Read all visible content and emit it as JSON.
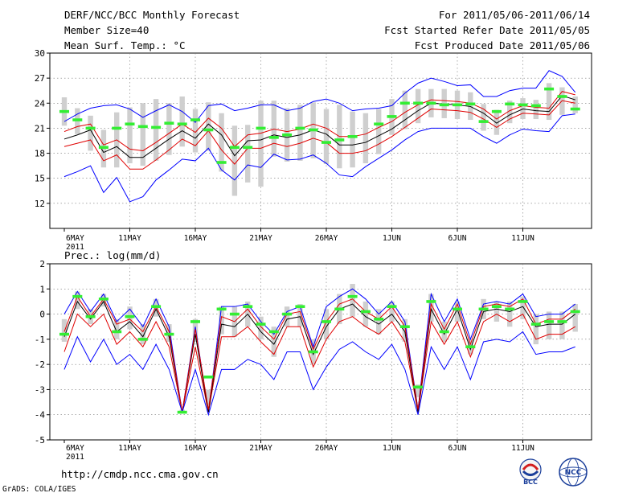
{
  "header": {
    "title": "DERF/NCC/BCC Monthly Forecast",
    "member_size": "Member Size=40",
    "variable": "Mean Surf. Temp.: °C",
    "period": "For 2011/05/06-2011/06/14",
    "started": "Fcst Started Refer Date 2011/05/05",
    "produced": "Fcst Produced Date 2011/05/06"
  },
  "footer": {
    "url": "http://cmdp.ncc.cma.gov.cn",
    "grads": "GrADS: COLA/IGES"
  },
  "logos": {
    "bcc": "BCC",
    "ncc": "NCC"
  },
  "colors": {
    "spread": "#0000ff",
    "ens_band": "#e00000",
    "mean": "#000000",
    "obs": "#33ee33",
    "box": "#cfcfcf"
  },
  "chart_data": [
    {
      "type": "line",
      "title": "Mean Surf. Temp.: °C",
      "x_tick_labels": [
        "6MAY",
        "11MAY",
        "16MAY",
        "21MAY",
        "26MAY",
        "1JUN",
        "6JUN",
        "11JUN"
      ],
      "x_year_label": "2011",
      "x_count": 40,
      "ylim": [
        9,
        30
      ],
      "y_ticks": [
        12,
        15,
        18,
        21,
        24,
        27,
        30
      ],
      "series": [
        {
          "name": "max",
          "values": [
            15.2,
            15.8,
            16.5,
            13.3,
            15.1,
            12.2,
            12.8,
            14.8,
            16.0,
            17.3,
            17.1,
            18.6,
            16.0,
            14.8,
            16.6,
            16.3,
            17.9,
            17.2,
            17.3,
            17.8,
            16.8,
            15.4,
            15.2,
            16.4,
            17.4,
            18.4,
            19.6,
            20.6,
            21.0,
            21.0,
            21.0,
            21.0,
            20.0,
            19.2,
            20.2,
            20.9,
            20.7,
            20.6,
            22.5,
            22.7
          ]
        },
        {
          "name": "p25",
          "values": [
            18.8,
            19.2,
            19.6,
            17.1,
            17.8,
            16.1,
            16.1,
            17.2,
            18.4,
            19.7,
            18.9,
            20.7,
            18.4,
            16.7,
            18.6,
            18.6,
            19.2,
            18.8,
            19.2,
            19.8,
            19.3,
            18.0,
            18.0,
            18.3,
            19.1,
            20.0,
            21.1,
            22.2,
            23.3,
            23.2,
            23.1,
            22.9,
            22.1,
            21.1,
            22.1,
            22.8,
            22.7,
            22.6,
            24.3,
            24.0
          ]
        },
        {
          "name": "mean",
          "values": [
            19.7,
            20.2,
            20.8,
            18.1,
            18.8,
            17.5,
            17.5,
            18.6,
            19.7,
            20.7,
            19.8,
            21.5,
            20.2,
            17.7,
            19.5,
            19.6,
            20.2,
            19.9,
            20.2,
            20.8,
            20.3,
            19.0,
            19.0,
            19.3,
            20.1,
            20.9,
            22.0,
            23.1,
            24.0,
            23.9,
            23.8,
            23.6,
            22.8,
            21.6,
            22.6,
            23.3,
            23.1,
            23.0,
            24.9,
            24.4
          ]
        },
        {
          "name": "p75",
          "values": [
            20.6,
            21.2,
            21.5,
            19.0,
            19.6,
            18.5,
            18.3,
            19.3,
            20.4,
            21.5,
            20.5,
            22.2,
            21.0,
            18.8,
            20.2,
            20.4,
            20.9,
            20.6,
            20.9,
            21.5,
            21.0,
            20.0,
            20.0,
            20.3,
            21.1,
            21.8,
            22.9,
            23.8,
            24.4,
            24.3,
            24.2,
            24.0,
            23.3,
            22.1,
            23.1,
            23.7,
            23.5,
            23.4,
            25.4,
            25.0
          ]
        },
        {
          "name": "min",
          "values": [
            21.8,
            22.7,
            23.4,
            23.7,
            23.8,
            23.3,
            22.3,
            23.1,
            23.8,
            23.0,
            21.7,
            23.7,
            23.9,
            23.1,
            23.4,
            23.8,
            23.8,
            23.1,
            23.4,
            24.2,
            24.5,
            24.0,
            23.1,
            23.3,
            23.4,
            23.7,
            25.2,
            26.4,
            27.0,
            26.6,
            26.1,
            26.2,
            24.8,
            24.8,
            25.5,
            25.8,
            25.8,
            27.9,
            27.2,
            25.3
          ]
        },
        {
          "name": "obs",
          "values": [
            23.0,
            22.0,
            21.0,
            18.7,
            21.0,
            21.5,
            21.2,
            21.1,
            21.6,
            21.5,
            22.0,
            20.8,
            16.9,
            18.7,
            18.7,
            21.0,
            19.9,
            20.2,
            21.0,
            20.8,
            19.3,
            19.6,
            20.0,
            null,
            21.5,
            22.4,
            24.0,
            24.0,
            24.0,
            23.8,
            23.8,
            23.9,
            21.8,
            23.0,
            23.9,
            23.8,
            23.7,
            25.7,
            24.8,
            23.3
          ]
        }
      ],
      "box_low": [
        21.3,
        20.3,
        18.3,
        16.3,
        16.3,
        16.8,
        16.5,
        17.1,
        17.8,
        18.8,
        18.1,
        18.3,
        15.8,
        12.9,
        14.5,
        14.0,
        17.6,
        17.0,
        17.1,
        17.4,
        16.7,
        16.2,
        16.3,
        16.8,
        17.9,
        20.2,
        20.9,
        21.6,
        22.3,
        22.2,
        22.1,
        22.0,
        20.7,
        20.2,
        21.6,
        22.1,
        22.1,
        22.0,
        22.6,
        22.8
      ],
      "box_high": [
        24.7,
        23.4,
        22.5,
        20.8,
        22.9,
        23.5,
        24.0,
        24.5,
        24.0,
        24.8,
        23.3,
        24.1,
        22.8,
        21.3,
        21.4,
        24.3,
        24.3,
        23.4,
        23.8,
        24.1,
        23.3,
        23.8,
        23.0,
        22.8,
        23.3,
        24.5,
        25.5,
        25.7,
        25.7,
        25.7,
        25.5,
        25.3,
        23.9,
        23.2,
        24.3,
        24.6,
        24.4,
        26.4,
        25.9,
        24.8
      ]
    },
    {
      "type": "line",
      "title": "Prec.: log(mm/d)",
      "x_tick_labels": [
        "6MAY",
        "11MAY",
        "16MAY",
        "21MAY",
        "26MAY",
        "1JUN",
        "6JUN",
        "11JUN"
      ],
      "x_year_label": "2011",
      "x_count": 40,
      "ylim": [
        -5,
        2
      ],
      "y_ticks": [
        -5,
        -4,
        -3,
        -2,
        -1,
        0,
        1,
        2
      ],
      "series": [
        {
          "name": "max",
          "values": [
            0.0,
            0.9,
            0.1,
            0.8,
            -0.3,
            0.2,
            -0.5,
            0.6,
            -0.5,
            -3.9,
            -0.5,
            -3.9,
            0.3,
            0.3,
            0.4,
            -0.3,
            -0.8,
            0.1,
            0.3,
            -1.3,
            0.3,
            0.7,
            1.0,
            0.6,
            0.0,
            0.5,
            -0.3,
            -3.8,
            0.8,
            -0.3,
            0.6,
            -1.0,
            0.4,
            0.5,
            0.4,
            0.8,
            -0.1,
            0.0,
            0.0,
            0.4
          ]
        },
        {
          "name": "p25",
          "values": [
            -1.5,
            0.0,
            -0.5,
            0.0,
            -1.2,
            -0.7,
            -1.3,
            -0.3,
            -1.3,
            -3.9,
            -1.3,
            -3.9,
            -0.9,
            -0.9,
            -0.5,
            -1.1,
            -1.6,
            -0.5,
            -0.5,
            -2.1,
            -1.0,
            -0.3,
            -0.1,
            -0.5,
            -0.8,
            -0.3,
            -1.1,
            -3.9,
            -0.3,
            -1.2,
            -0.3,
            -1.7,
            -0.3,
            0.0,
            -0.3,
            0.0,
            -1.0,
            -0.8,
            -0.8,
            -0.5
          ]
        },
        {
          "name": "mean",
          "values": [
            -0.9,
            0.5,
            -0.2,
            0.5,
            -0.7,
            -0.3,
            -0.9,
            0.2,
            -0.9,
            -3.9,
            -0.8,
            -3.9,
            -0.4,
            -0.5,
            0.0,
            -0.7,
            -1.2,
            -0.2,
            -0.1,
            -1.6,
            -0.5,
            0.2,
            0.4,
            -0.1,
            -0.4,
            0.0,
            -0.7,
            -3.9,
            0.2,
            -0.8,
            0.2,
            -1.4,
            0.1,
            0.2,
            0.1,
            0.3,
            -0.5,
            -0.4,
            -0.4,
            0.0
          ]
        },
        {
          "name": "p75",
          "values": [
            -0.7,
            0.7,
            -0.1,
            0.6,
            -0.4,
            -0.2,
            -0.7,
            0.3,
            -0.7,
            -3.9,
            -0.6,
            -3.8,
            -0.1,
            -0.3,
            0.2,
            -0.5,
            -1.0,
            0.0,
            0.1,
            -1.4,
            -0.3,
            0.4,
            0.6,
            0.1,
            -0.2,
            0.3,
            -0.5,
            -3.8,
            0.4,
            -0.6,
            0.4,
            -1.2,
            0.3,
            0.4,
            0.3,
            0.6,
            -0.4,
            -0.2,
            -0.2,
            0.2
          ]
        },
        {
          "name": "min",
          "values": [
            -2.2,
            -0.9,
            -1.9,
            -1.0,
            -2.0,
            -1.6,
            -2.2,
            -1.2,
            -2.2,
            -3.9,
            -2.2,
            -4.0,
            -2.2,
            -2.2,
            -1.8,
            -2.0,
            -2.6,
            -1.5,
            -1.5,
            -3.0,
            -2.1,
            -1.4,
            -1.1,
            -1.5,
            -1.8,
            -1.2,
            -2.2,
            -4.0,
            -1.3,
            -2.2,
            -1.3,
            -2.6,
            -1.1,
            -1.0,
            -1.1,
            -0.7,
            -1.6,
            -1.5,
            -1.5,
            -1.3
          ]
        },
        {
          "name": "obs",
          "values": [
            -0.8,
            0.7,
            -0.1,
            0.6,
            -0.7,
            -0.1,
            -1.0,
            0.3,
            -0.8,
            -3.9,
            -0.3,
            -2.5,
            0.2,
            0.0,
            0.3,
            -0.4,
            -0.7,
            0.0,
            0.3,
            -1.5,
            -0.3,
            0.2,
            0.7,
            0.1,
            -0.2,
            0.3,
            -0.5,
            -2.9,
            0.5,
            -0.7,
            0.2,
            -1.3,
            0.2,
            0.3,
            0.2,
            0.5,
            -0.4,
            -0.3,
            -0.3,
            0.1
          ]
        }
      ],
      "box_low": [
        -1.1,
        0.2,
        -0.4,
        0.3,
        -1.0,
        -0.6,
        -1.2,
        -0.1,
        -1.1,
        -3.9,
        -1.1,
        -3.6,
        -0.8,
        -0.9,
        -0.5,
        -1.0,
        -1.7,
        -0.5,
        -0.5,
        -2.0,
        -1.0,
        -0.4,
        -0.1,
        -0.5,
        -0.8,
        -0.3,
        -1.1,
        -3.3,
        -0.3,
        -1.1,
        -0.3,
        -1.6,
        -0.2,
        -0.3,
        -0.5,
        -0.2,
        -1.2,
        -1.0,
        -1.0,
        -0.7
      ],
      "box_high": [
        -0.2,
        0.9,
        0.2,
        0.8,
        -0.2,
        0.3,
        -0.4,
        0.6,
        -0.4,
        -3.8,
        -0.2,
        -3.0,
        0.3,
        0.3,
        0.5,
        -0.1,
        -0.5,
        0.3,
        0.4,
        -1.0,
        0.2,
        0.8,
        1.2,
        0.5,
        0.2,
        0.5,
        -0.2,
        -2.8,
        0.8,
        -0.3,
        0.5,
        -1.0,
        0.6,
        0.5,
        0.5,
        0.7,
        0.0,
        0.1,
        0.1,
        0.4
      ]
    }
  ]
}
